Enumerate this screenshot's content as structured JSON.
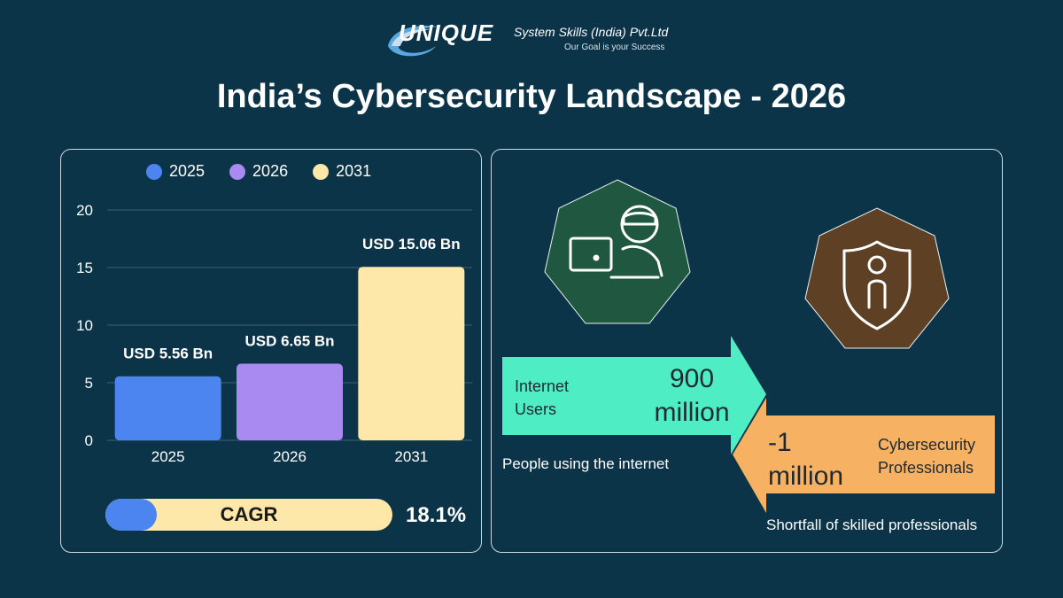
{
  "header": {
    "brand": "UNIQUE",
    "company": "System Skills (India) Pvt.Ltd",
    "tagline": "Our Goal is your Success",
    "title": "India’s Cybersecurity Landscape - 2026"
  },
  "chart_data": {
    "type": "bar",
    "categories": [
      "2025",
      "2026",
      "2031"
    ],
    "values": [
      5.56,
      6.65,
      15.06
    ],
    "data_labels": [
      "USD 5.56 Bn",
      "USD 6.65 Bn",
      "USD 15.06 Bn"
    ],
    "colors": [
      "#4c85f0",
      "#a98af0",
      "#fde7a9"
    ],
    "legend": [
      "2025",
      "2026",
      "2031"
    ],
    "legend_position": "top",
    "ylim": [
      0,
      20
    ],
    "yticks": [
      "0",
      "5",
      "10",
      "15",
      "20"
    ],
    "grid": true
  },
  "cagr": {
    "label": "CAGR",
    "value": "18.1%",
    "fill_fraction": 0.18
  },
  "stats": {
    "internet": {
      "label_line1": "Internet",
      "label_line2": "Users",
      "value_line1": "900",
      "value_line2": "million",
      "caption": "People using the internet",
      "color": "#4fedc4"
    },
    "professionals": {
      "value_line1": "-1",
      "value_line2": "million",
      "label_line1": "Cybersecurity",
      "label_line2": "Professionals",
      "caption": "Shortfall of skilled professionals",
      "color": "#f7b162"
    }
  },
  "icons": {
    "user_laptop": "user-laptop-icon",
    "shield_person": "shield-person-icon"
  },
  "colors": {
    "background": "#0c3448",
    "green_heptagon": "#1f5740",
    "brown_heptagon": "#5e4125"
  }
}
